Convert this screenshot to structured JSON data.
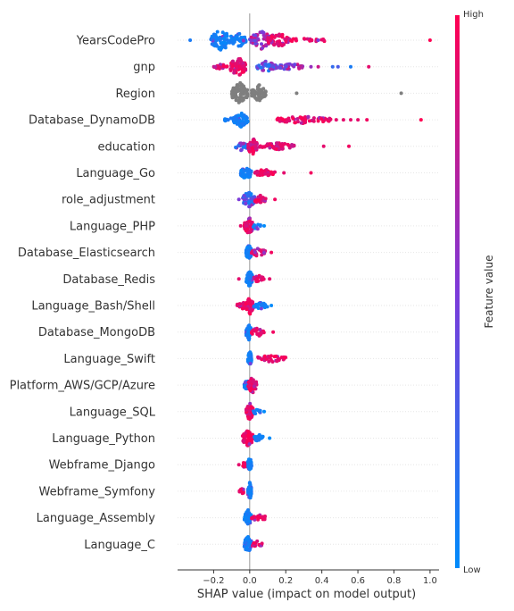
{
  "chart_data": {
    "type": "scatter",
    "subtype": "shap-beeswarm",
    "xlabel": "SHAP value (impact on model output)",
    "xlim": [
      -0.4,
      1.05
    ],
    "xticks": [
      -0.2,
      0.0,
      0.2,
      0.4,
      0.6,
      0.8,
      1.0
    ],
    "xtick_labels": [
      "−0.2",
      "0.0",
      "0.2",
      "0.4",
      "0.6",
      "0.8",
      "1.0"
    ],
    "colorbar": {
      "title": "Feature value",
      "high_label": "High",
      "low_label": "Low",
      "low_color": "#008bfb",
      "high_color": "#ff0052"
    },
    "missing_color": "#7f7f7f",
    "features": [
      {
        "name": "YearsCodePro",
        "clusters": [
          {
            "range": [
              -0.22,
              -0.1
            ],
            "n": 70,
            "mix": "low",
            "width": 12
          },
          {
            "range": [
              -0.1,
              -0.02
            ],
            "n": 40,
            "mix": "low",
            "width": 8
          },
          {
            "range": [
              0.0,
              0.13
            ],
            "n": 60,
            "mix": "mid",
            "width": 10
          },
          {
            "range": [
              0.1,
              0.22
            ],
            "n": 50,
            "mix": "high",
            "width": 9
          },
          {
            "range": [
              0.22,
              0.42
            ],
            "n": 20,
            "mix": "high",
            "width": 3
          }
        ],
        "points": [
          [
            -0.33,
            0.1
          ],
          [
            0.38,
            0.5
          ],
          [
            0.41,
            0.9
          ],
          [
            1.0,
            1.0
          ]
        ]
      },
      {
        "name": "gnp",
        "clusters": [
          {
            "range": [
              -0.2,
              -0.12
            ],
            "n": 20,
            "mix": "high",
            "width": 3
          },
          {
            "range": [
              -0.11,
              -0.02
            ],
            "n": 65,
            "mix": "high",
            "width": 11
          },
          {
            "range": [
              0.03,
              0.15
            ],
            "n": 50,
            "mix": "lowmid",
            "width": 6
          },
          {
            "range": [
              0.15,
              0.3
            ],
            "n": 35,
            "mix": "mid",
            "width": 4
          }
        ],
        "points": [
          [
            0.34,
            0.6
          ],
          [
            0.38,
            0.8
          ],
          [
            0.46,
            0.2
          ],
          [
            0.49,
            0.3
          ],
          [
            0.56,
            0.1
          ],
          [
            0.66,
            0.9
          ]
        ]
      },
      {
        "name": "Region",
        "clusters": [
          {
            "range": [
              -0.1,
              -0.01
            ],
            "n": 75,
            "mix": "gray",
            "width": 12
          },
          {
            "range": [
              0.01,
              0.09
            ],
            "n": 60,
            "mix": "gray",
            "width": 10
          }
        ],
        "gray_points": [
          0.26,
          0.84
        ]
      },
      {
        "name": "Database_DynamoDB",
        "clusters": [
          {
            "range": [
              -0.14,
              -0.08
            ],
            "n": 10,
            "mix": "low",
            "width": 3
          },
          {
            "range": [
              -0.09,
              -0.01
            ],
            "n": 65,
            "mix": "low",
            "width": 8
          },
          {
            "range": [
              0.13,
              0.45
            ],
            "n": 60,
            "mix": "high",
            "width": 4
          }
        ],
        "points": [
          [
            0.48,
            0.9
          ],
          [
            0.52,
            0.9
          ],
          [
            0.56,
            0.9
          ],
          [
            0.6,
            0.9
          ],
          [
            0.65,
            0.95
          ],
          [
            0.95,
            1.0
          ]
        ]
      },
      {
        "name": "education",
        "clusters": [
          {
            "range": [
              -0.08,
              -0.01
            ],
            "n": 30,
            "mix": "lowmid",
            "width": 5
          },
          {
            "range": [
              -0.01,
              0.04
            ],
            "n": 55,
            "mix": "high",
            "width": 10
          },
          {
            "range": [
              0.04,
              0.25
            ],
            "n": 50,
            "mix": "highish",
            "width": 4
          }
        ],
        "points": [
          [
            0.41,
            0.9
          ],
          [
            0.55,
            0.95
          ]
        ]
      },
      {
        "name": "Language_Go",
        "clusters": [
          {
            "range": [
              -0.05,
              0.01
            ],
            "n": 45,
            "mix": "low",
            "width": 8
          },
          {
            "range": [
              0.02,
              0.14
            ],
            "n": 40,
            "mix": "high",
            "width": 4
          }
        ],
        "points": [
          [
            0.19,
            0.9
          ],
          [
            0.34,
            0.95
          ]
        ]
      },
      {
        "name": "role_adjustment",
        "clusters": [
          {
            "range": [
              -0.04,
              0.03
            ],
            "n": 55,
            "mix": "lowmid",
            "width": 9
          },
          {
            "range": [
              0.02,
              0.09
            ],
            "n": 25,
            "mix": "high",
            "width": 5
          }
        ],
        "points": [
          [
            -0.06,
            0.5
          ],
          [
            0.14,
            0.95
          ]
        ]
      },
      {
        "name": "Language_PHP",
        "clusters": [
          {
            "range": [
              -0.03,
              0.02
            ],
            "n": 55,
            "mix": "high",
            "width": 10
          },
          {
            "range": [
              0.02,
              0.06
            ],
            "n": 10,
            "mix": "low",
            "width": 4
          }
        ],
        "points": [
          [
            -0.05,
            0.9
          ],
          [
            0.08,
            0.0
          ]
        ]
      },
      {
        "name": "Database_Elasticsearch",
        "clusters": [
          {
            "range": [
              -0.02,
              0.01
            ],
            "n": 50,
            "mix": "low",
            "width": 9
          },
          {
            "range": [
              0.01,
              0.09
            ],
            "n": 30,
            "mix": "high",
            "width": 5
          }
        ],
        "points": [
          [
            0.12,
            0.95
          ]
        ]
      },
      {
        "name": "Database_Redis",
        "clusters": [
          {
            "range": [
              -0.02,
              0.02
            ],
            "n": 50,
            "mix": "low",
            "width": 9
          },
          {
            "range": [
              0.02,
              0.08
            ],
            "n": 20,
            "mix": "high",
            "width": 4
          }
        ],
        "points": [
          [
            -0.06,
            0.9
          ],
          [
            0.11,
            0.9
          ]
        ]
      },
      {
        "name": "Language_Bash/Shell",
        "clusters": [
          {
            "range": [
              -0.07,
              -0.01
            ],
            "n": 25,
            "mix": "high",
            "width": 4
          },
          {
            "range": [
              -0.02,
              0.02
            ],
            "n": 45,
            "mix": "high",
            "width": 10
          },
          {
            "range": [
              0.02,
              0.1
            ],
            "n": 20,
            "mix": "low",
            "width": 4
          }
        ],
        "points": [
          [
            0.12,
            0.0
          ]
        ]
      },
      {
        "name": "Database_MongoDB",
        "clusters": [
          {
            "range": [
              -0.02,
              0.01
            ],
            "n": 45,
            "mix": "low",
            "width": 9
          },
          {
            "range": [
              0.01,
              0.08
            ],
            "n": 25,
            "mix": "high",
            "width": 5
          }
        ],
        "points": [
          [
            0.13,
            0.95
          ]
        ]
      },
      {
        "name": "Language_Swift",
        "clusters": [
          {
            "range": [
              -0.01,
              0.01
            ],
            "n": 40,
            "mix": "low",
            "width": 9
          },
          {
            "range": [
              0.04,
              0.2
            ],
            "n": 40,
            "mix": "high",
            "width": 4
          }
        ],
        "points": []
      },
      {
        "name": "Platform_AWS/GCP/Azure",
        "clusters": [
          {
            "range": [
              -0.03,
              0.0
            ],
            "n": 30,
            "mix": "low",
            "width": 6
          },
          {
            "range": [
              -0.01,
              0.04
            ],
            "n": 45,
            "mix": "high",
            "width": 9
          }
        ],
        "points": []
      },
      {
        "name": "Language_SQL",
        "clusters": [
          {
            "range": [
              -0.02,
              0.02
            ],
            "n": 55,
            "mix": "high",
            "width": 10
          },
          {
            "range": [
              0.02,
              0.06
            ],
            "n": 12,
            "mix": "low",
            "width": 4
          }
        ],
        "points": [
          [
            0.08,
            0.0
          ]
        ]
      },
      {
        "name": "Language_Python",
        "clusters": [
          {
            "range": [
              -0.04,
              0.02
            ],
            "n": 55,
            "mix": "high",
            "width": 9
          },
          {
            "range": [
              0.02,
              0.08
            ],
            "n": 20,
            "mix": "low",
            "width": 4
          }
        ],
        "points": [
          [
            0.11,
            0.0
          ]
        ]
      },
      {
        "name": "Webframe_Django",
        "clusters": [
          {
            "range": [
              -0.04,
              -0.01
            ],
            "n": 15,
            "mix": "high",
            "width": 4
          },
          {
            "range": [
              -0.01,
              0.01
            ],
            "n": 40,
            "mix": "low",
            "width": 10
          }
        ],
        "points": [
          [
            -0.06,
            0.9
          ]
        ]
      },
      {
        "name": "Webframe_Symfony",
        "clusters": [
          {
            "range": [
              -0.06,
              -0.02
            ],
            "n": 12,
            "mix": "high",
            "width": 3
          },
          {
            "range": [
              -0.01,
              0.01
            ],
            "n": 45,
            "mix": "low",
            "width": 10
          }
        ],
        "points": []
      },
      {
        "name": "Language_Assembly",
        "clusters": [
          {
            "range": [
              -0.03,
              0.01
            ],
            "n": 45,
            "mix": "low",
            "width": 10
          },
          {
            "range": [
              0.01,
              0.09
            ],
            "n": 20,
            "mix": "high",
            "width": 4
          }
        ],
        "points": []
      },
      {
        "name": "Language_C",
        "clusters": [
          {
            "range": [
              -0.03,
              0.01
            ],
            "n": 45,
            "mix": "low",
            "width": 10
          },
          {
            "range": [
              0.01,
              0.07
            ],
            "n": 18,
            "mix": "high",
            "width": 4
          }
        ],
        "points": []
      }
    ]
  }
}
